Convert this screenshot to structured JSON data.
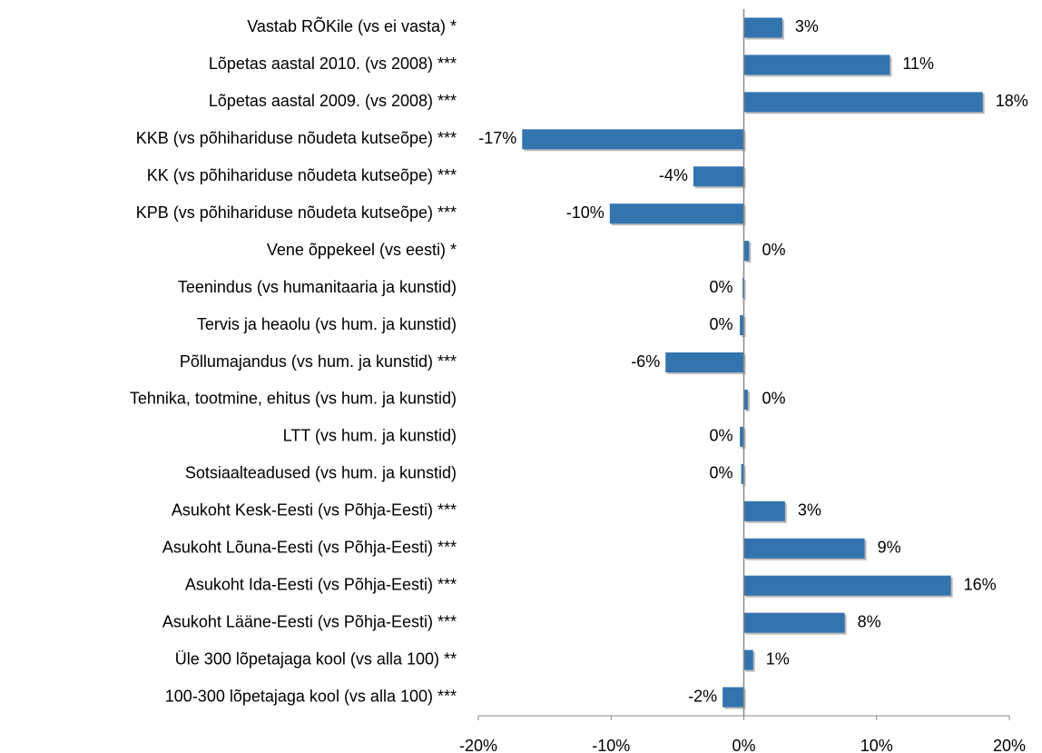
{
  "chart_data": {
    "type": "hbar",
    "categories": [
      "Vastab RÕKile (vs ei vasta) *",
      "Lõpetas aastal 2010. (vs 2008) ***",
      "Lõpetas aastal 2009. (vs 2008) ***",
      "KKB (vs põhihariduse nõudeta kutseõpe) ***",
      "KK (vs põhihariduse nõudeta kutseõpe) ***",
      "KPB (vs põhihariduse nõudeta kutseõpe) ***",
      "Vene õppekeel (vs eesti) *",
      "Teenindus (vs humanitaaria ja kunstid)",
      "Tervis ja heaolu (vs hum. ja kunstid)",
      "Põllumajandus (vs hum. ja kunstid) ***",
      "Tehnika, tootmine, ehitus (vs hum. ja kunstid)",
      "LTT (vs hum. ja kunstid)",
      "Sotsiaalteadused (vs hum. ja kunstid)",
      "Asukoht Kesk-Eesti (vs Põhja-Eesti) ***",
      "Asukoht Lõuna-Eesti  (vs Põhja-Eesti) ***",
      "Asukoht Ida-Eesti (vs Põhja-Eesti) ***",
      "Asukoht Lääne-Eesti (vs Põhja-Eesti) ***",
      "Üle 300 lõpetajaga kool (vs alla 100) **",
      "100-300 lõpetajaga kool (vs alla 100) ***"
    ],
    "values": [
      2.9,
      11,
      18,
      -16.7,
      -3.8,
      -10.1,
      0.4,
      -0.1,
      -0.3,
      -5.9,
      0.3,
      -0.3,
      -0.2,
      3.1,
      9.1,
      15.6,
      7.6,
      0.7,
      -1.6
    ],
    "value_labels": [
      "3%",
      "11%",
      "18%",
      "-17%",
      "-4%",
      "-10%",
      "0%",
      "0%",
      "0%",
      "-6%",
      "0%",
      "0%",
      "0%",
      "3%",
      "9%",
      "16%",
      "8%",
      "1%",
      "-2%"
    ],
    "color": "#3474ae",
    "xlim": [
      -20,
      20
    ],
    "xticks": [
      {
        "value": -20,
        "label": "-20%"
      },
      {
        "value": -10,
        "label": "-10%"
      },
      {
        "value": 0,
        "label": "0%"
      },
      {
        "value": 10,
        "label": "10%"
      },
      {
        "value": 20,
        "label": "20%"
      }
    ],
    "grid": false
  }
}
